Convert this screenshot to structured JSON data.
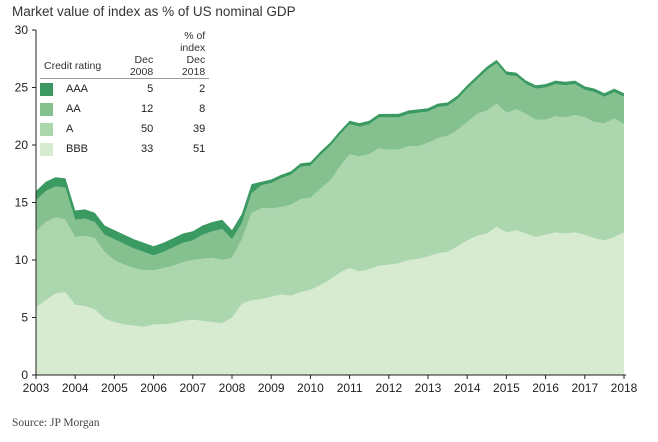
{
  "title": "Market value of index as % of US nominal GDP",
  "source": "Source: JP Morgan",
  "legend": {
    "heading_top": "% of index",
    "col_rating": "Credit rating",
    "col_2008": "Dec 2008",
    "col_2018": "Dec 2018",
    "rows": [
      {
        "label": "AAA",
        "dec2008": "5",
        "dec2018": "2",
        "color": "#3a9a62"
      },
      {
        "label": "AA",
        "dec2008": "12",
        "dec2018": "8",
        "color": "#85c08f"
      },
      {
        "label": "A",
        "dec2008": "50",
        "dec2018": "39",
        "color": "#acd6ae"
      },
      {
        "label": "BBB",
        "dec2008": "33",
        "dec2018": "51",
        "color": "#d6ebcf"
      }
    ]
  },
  "chart_data": {
    "type": "area",
    "stacked": true,
    "ylim": [
      0,
      30
    ],
    "yticks": [
      "0",
      "5",
      "10",
      "15",
      "20",
      "25",
      "30"
    ],
    "xlim": [
      2003,
      2018
    ],
    "xticks": [
      "2003",
      "2004",
      "2005",
      "2006",
      "2007",
      "2008",
      "2009",
      "2010",
      "2011",
      "2012",
      "2013",
      "2014",
      "2015",
      "2016",
      "2017",
      "2018"
    ],
    "grid": false,
    "x": [
      2003.0,
      2003.25,
      2003.5,
      2003.75,
      2004.0,
      2004.25,
      2004.5,
      2004.75,
      2005.0,
      2005.25,
      2005.5,
      2005.75,
      2006.0,
      2006.25,
      2006.5,
      2006.75,
      2007.0,
      2007.25,
      2007.5,
      2007.75,
      2008.0,
      2008.25,
      2008.5,
      2008.75,
      2009.0,
      2009.25,
      2009.5,
      2009.75,
      2010.0,
      2010.25,
      2010.5,
      2010.75,
      2011.0,
      2011.25,
      2011.5,
      2011.75,
      2012.0,
      2012.25,
      2012.5,
      2012.75,
      2013.0,
      2013.25,
      2013.5,
      2013.75,
      2014.0,
      2014.25,
      2014.5,
      2014.75,
      2015.0,
      2015.25,
      2015.5,
      2015.75,
      2016.0,
      2016.25,
      2016.5,
      2016.75,
      2017.0,
      2017.25,
      2017.5,
      2017.75,
      2018.0
    ],
    "series": [
      {
        "name": "BBB",
        "color": "#d6ebcf",
        "values": [
          5.9,
          6.5,
          7.1,
          7.2,
          6.1,
          6.0,
          5.7,
          4.9,
          4.6,
          4.4,
          4.3,
          4.2,
          4.4,
          4.4,
          4.5,
          4.7,
          4.8,
          4.7,
          4.6,
          4.5,
          5.0,
          6.2,
          6.5,
          6.6,
          6.8,
          7.0,
          6.9,
          7.2,
          7.4,
          7.8,
          8.3,
          8.9,
          9.3,
          9.0,
          9.2,
          9.5,
          9.6,
          9.7,
          10.0,
          10.1,
          10.3,
          10.6,
          10.7,
          11.2,
          11.7,
          12.1,
          12.3,
          12.9,
          12.4,
          12.6,
          12.3,
          12.0,
          12.2,
          12.4,
          12.3,
          12.4,
          12.2,
          11.9,
          11.7,
          12.0,
          12.4
        ]
      },
      {
        "name": "A",
        "color": "#acd6ae",
        "values": [
          6.6,
          6.8,
          6.6,
          6.3,
          5.9,
          6.1,
          6.2,
          5.8,
          5.4,
          5.2,
          5.0,
          4.9,
          4.7,
          4.9,
          5.0,
          5.1,
          5.2,
          5.4,
          5.6,
          5.5,
          5.2,
          5.6,
          7.6,
          7.9,
          7.7,
          7.6,
          7.9,
          8.1,
          8.0,
          8.4,
          8.6,
          9.2,
          9.9,
          10.0,
          10.0,
          10.2,
          10.0,
          9.9,
          9.9,
          9.8,
          9.9,
          10.0,
          10.1,
          10.1,
          10.3,
          10.6,
          10.7,
          10.7,
          10.4,
          10.5,
          10.4,
          10.2,
          10.0,
          10.1,
          10.1,
          10.2,
          10.2,
          10.1,
          10.2,
          10.3,
          9.4
        ]
      },
      {
        "name": "AA",
        "color": "#85c08f",
        "values": [
          2.7,
          2.7,
          2.7,
          2.8,
          1.5,
          1.5,
          1.4,
          1.5,
          1.8,
          1.8,
          1.7,
          1.6,
          1.3,
          1.4,
          1.6,
          1.7,
          1.7,
          2.1,
          2.3,
          2.7,
          1.6,
          1.4,
          1.7,
          2.0,
          2.2,
          2.5,
          2.6,
          2.8,
          2.8,
          2.9,
          3.0,
          2.8,
          2.6,
          2.6,
          2.6,
          2.7,
          2.8,
          2.8,
          2.8,
          2.9,
          2.7,
          2.7,
          2.6,
          2.7,
          2.9,
          3.0,
          3.5,
          3.5,
          3.3,
          2.9,
          2.6,
          2.7,
          2.8,
          2.8,
          2.8,
          2.7,
          2.4,
          2.6,
          2.3,
          2.3,
          2.4
        ]
      },
      {
        "name": "AAA",
        "color": "#3a9a62",
        "values": [
          0.8,
          0.8,
          0.8,
          0.8,
          0.8,
          0.8,
          0.8,
          0.8,
          0.8,
          0.8,
          0.8,
          0.8,
          0.8,
          0.8,
          0.8,
          0.8,
          0.8,
          0.8,
          0.8,
          0.8,
          0.8,
          0.8,
          0.8,
          0.3,
          0.3,
          0.3,
          0.3,
          0.3,
          0.3,
          0.3,
          0.3,
          0.3,
          0.3,
          0.3,
          0.3,
          0.3,
          0.3,
          0.3,
          0.3,
          0.3,
          0.3,
          0.3,
          0.3,
          0.3,
          0.3,
          0.3,
          0.3,
          0.3,
          0.3,
          0.3,
          0.3,
          0.3,
          0.3,
          0.3,
          0.3,
          0.3,
          0.3,
          0.3,
          0.3,
          0.3,
          0.3
        ]
      }
    ]
  }
}
